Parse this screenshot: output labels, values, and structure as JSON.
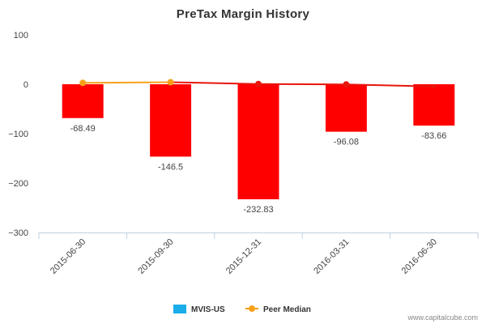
{
  "chart_data": {
    "type": "bar",
    "title": "PreTax Margin History",
    "categories": [
      "2015-06-30",
      "2015-09-30",
      "2015-12-31",
      "2016-03-31",
      "2016-06-30"
    ],
    "series": [
      {
        "name": "MVIS-US",
        "type": "bar",
        "values": [
          -68.49,
          -146.5,
          -232.83,
          -96.08,
          -83.66
        ],
        "data_labels": [
          "-68.49",
          "-146.5",
          "-232.83",
          "-96.08",
          "-83.66"
        ],
        "color": "#ff0000",
        "legend_color": "#1aadea"
      },
      {
        "name": "Peer Median",
        "type": "line",
        "values": [
          2.8,
          4.0,
          0.5,
          -0.5,
          -4.5
        ],
        "colors": [
          "#f7a11a",
          "#f7a11a",
          "#e8160c",
          "#e8160c",
          "#e8160c"
        ],
        "legend_color": "#f7a11a"
      }
    ],
    "ylim": [
      -300,
      100
    ],
    "yticks": [
      100,
      0,
      -100,
      -200,
      -300
    ],
    "ytick_labels": [
      "100",
      "0",
      "−100",
      "−200",
      "−300"
    ],
    "xlabel": "",
    "ylabel": "",
    "grid": false,
    "legend_position": "bottom-center"
  },
  "credit": "www.capitalcube.com"
}
